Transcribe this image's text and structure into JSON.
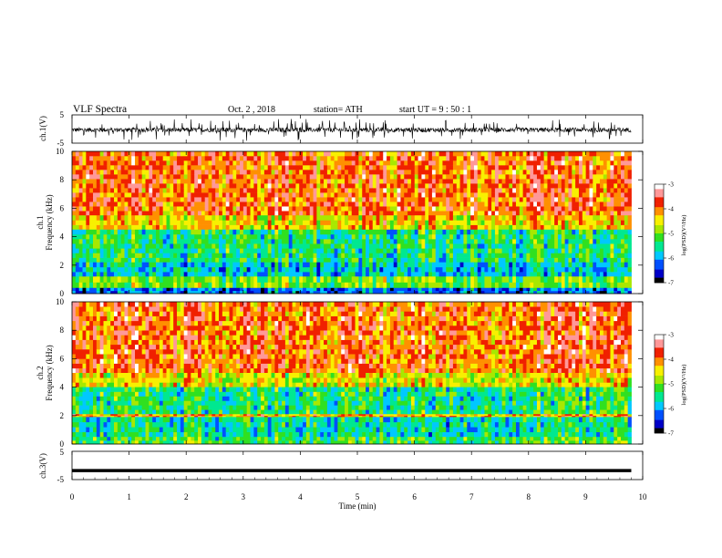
{
  "header": {
    "title": "VLF  Spectra",
    "date": "Oct. 2  , 2018",
    "station": "station= ATH",
    "start": "start  UT  =   9  :  50 :  1"
  },
  "chart_data": [
    {
      "type": "line",
      "name": "ch1-waveform",
      "ylabel": "ch.1(V)",
      "ylim": [
        -5,
        5
      ],
      "yticks": [
        "5",
        "-5"
      ],
      "xlim": [
        0,
        10
      ],
      "data_end_min": 9.8,
      "description_level": "noisy signal around -0.3 V, spikes up to about +3 V and down to -3 V"
    },
    {
      "type": "heatmap",
      "name": "ch1-spectrogram",
      "ylabel": "ch.1",
      "ylabel2": "Frequency  (kHz)",
      "ylim": [
        0,
        10
      ],
      "yticks": [
        "10",
        "8",
        "6",
        "4",
        "2",
        "0"
      ],
      "xlim": [
        0,
        10
      ],
      "data_end_min": 9.8,
      "colorbar": {
        "label": "log(PSD)(V²/Hz)",
        "range": [
          -7,
          -3
        ],
        "ticks": [
          "-3",
          "-4",
          "-5",
          "-6",
          "-7"
        ]
      },
      "bands": [
        {
          "from_khz": 5.5,
          "to_khz": 10,
          "log_psd": -3.9
        },
        {
          "from_khz": 4.5,
          "to_khz": 5.5,
          "log_psd": -4.4
        },
        {
          "from_khz": 2.2,
          "to_khz": 4.5,
          "log_psd": -5.4
        },
        {
          "from_khz": 1.2,
          "to_khz": 2.2,
          "log_psd": -5.8
        },
        {
          "from_khz": 0.4,
          "to_khz": 1.2,
          "log_psd": -5.0
        },
        {
          "from_khz": 0,
          "to_khz": 0.4,
          "log_psd": -6.2
        }
      ]
    },
    {
      "type": "heatmap",
      "name": "ch2-spectrogram",
      "ylabel": "ch.2",
      "ylabel2": "Frequency  (kHz)",
      "ylim": [
        0,
        10
      ],
      "yticks": [
        "10",
        "8",
        "6",
        "4",
        "2",
        "0"
      ],
      "xlim": [
        0,
        10
      ],
      "data_end_min": 9.8,
      "colorbar": {
        "label": "log(PSD)(V²/Hz)",
        "range": [
          -7,
          -3
        ],
        "ticks": [
          "-3",
          "-4",
          "-5",
          "-6",
          "-7"
        ]
      },
      "bands": [
        {
          "from_khz": 5.0,
          "to_khz": 10,
          "log_psd": -3.9
        },
        {
          "from_khz": 4.0,
          "to_khz": 5.0,
          "log_psd": -4.5
        },
        {
          "from_khz": 2.1,
          "to_khz": 4.0,
          "log_psd": -5.4
        },
        {
          "from_khz": 1.9,
          "to_khz": 2.1,
          "log_psd": -4.2
        },
        {
          "from_khz": 0.5,
          "to_khz": 1.9,
          "log_psd": -5.6
        },
        {
          "from_khz": 0,
          "to_khz": 0.5,
          "log_psd": -5.2
        }
      ]
    },
    {
      "type": "line",
      "name": "ch3-waveform",
      "ylabel": "ch.3(V)",
      "ylim": [
        -5,
        5
      ],
      "yticks": [
        "5",
        "-5"
      ],
      "xlim": [
        0,
        10
      ],
      "data_end_min": 9.8,
      "level": -1.8
    }
  ],
  "xaxis": {
    "label": "Time  (min)",
    "ticks": [
      "0",
      "1",
      "2",
      "3",
      "4",
      "5",
      "6",
      "7",
      "8",
      "9",
      "10"
    ]
  },
  "colorbar_colors": [
    "#000000",
    "#0000c8",
    "#0050ff",
    "#00c8ff",
    "#00e890",
    "#30e020",
    "#a8e800",
    "#f8f000",
    "#ff9000",
    "#f02000",
    "#ff9898",
    "#ffffff"
  ]
}
